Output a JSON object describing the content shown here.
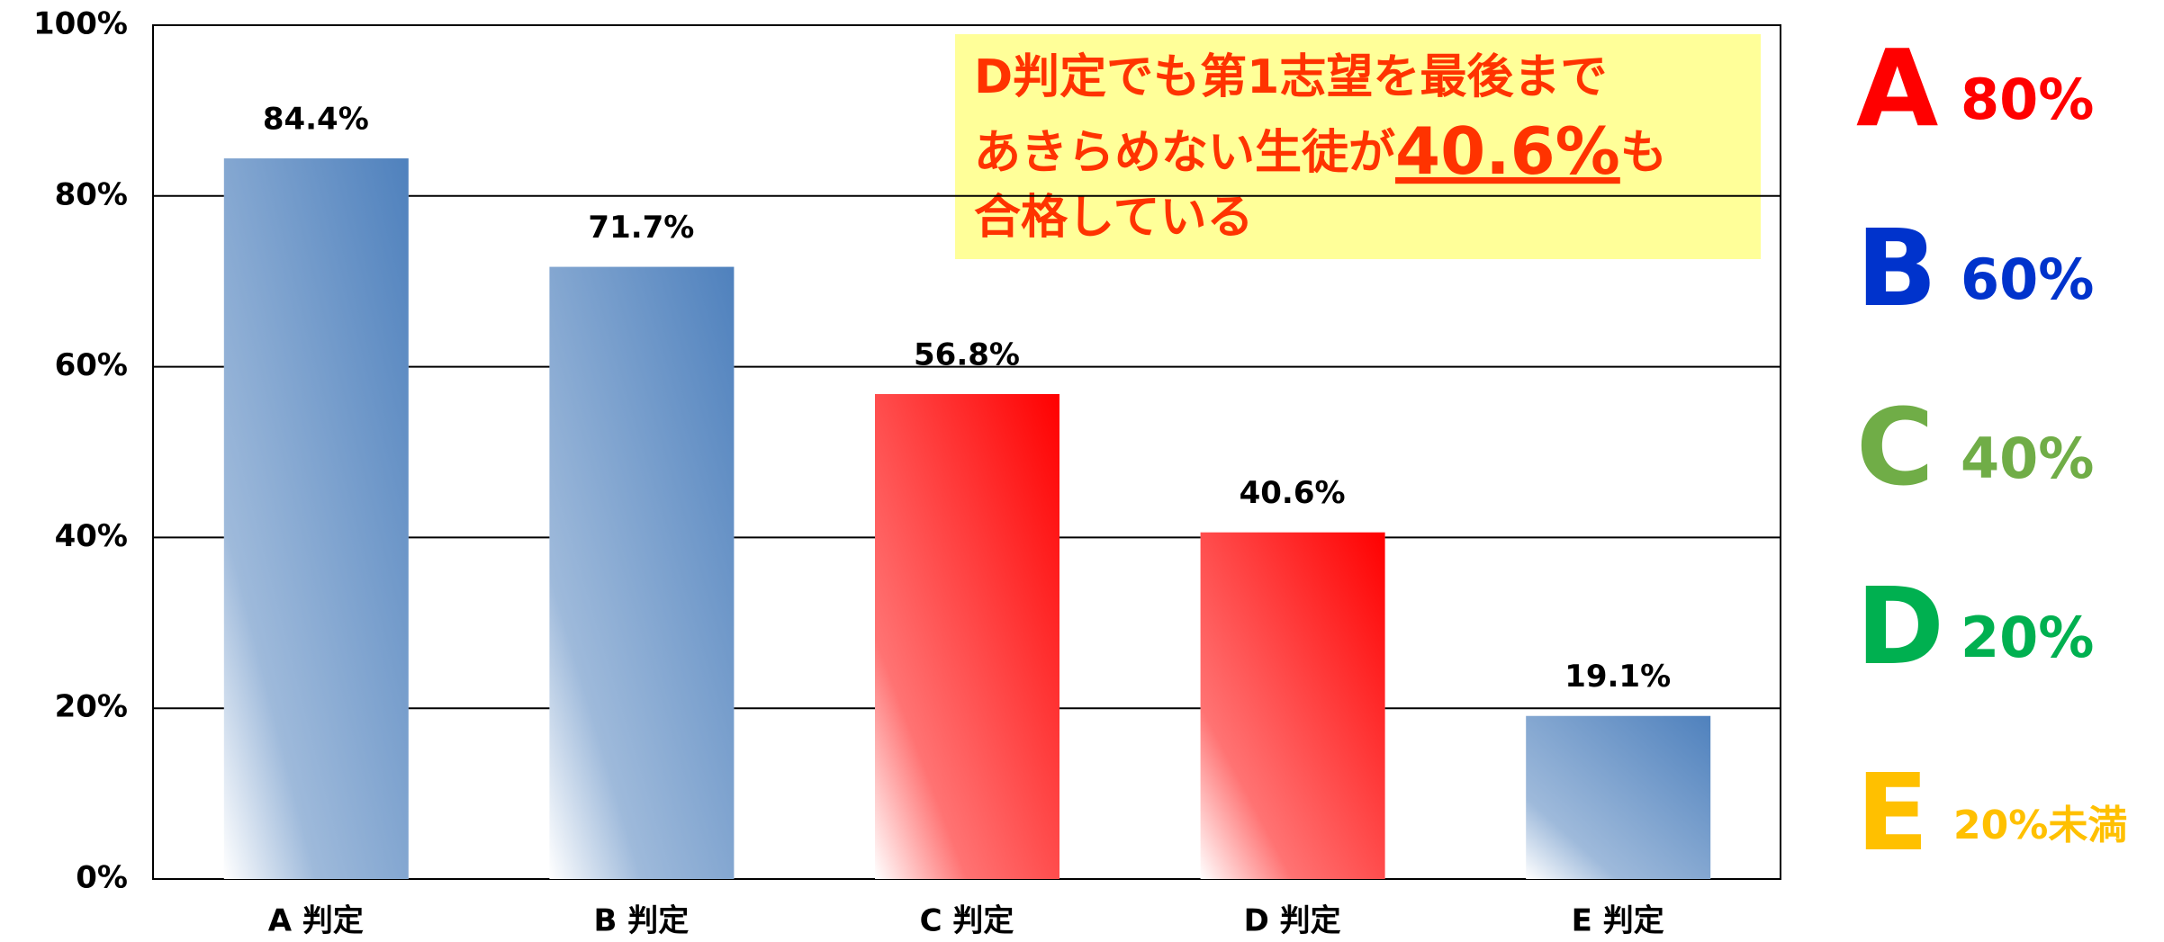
{
  "chart_data": {
    "type": "bar",
    "categories": [
      "A 判定",
      "B 判定",
      "C 判定",
      "D 判定",
      "E 判定"
    ],
    "values": [
      84.4,
      71.7,
      56.8,
      40.6,
      19.1
    ],
    "value_labels": [
      "84.4%",
      "71.7%",
      "56.8%",
      "40.6%",
      "19.1%"
    ],
    "colors": [
      "#4f81bd",
      "#4f81bd",
      "#ff0000",
      "#ff0000",
      "#4f81bd"
    ],
    "ylim": [
      0,
      100
    ],
    "yticks": [
      {
        "value": 0,
        "label": "0%"
      },
      {
        "value": 20,
        "label": "20%"
      },
      {
        "value": 40,
        "label": "40%"
      },
      {
        "value": 60,
        "label": "60%"
      },
      {
        "value": 80,
        "label": "80%"
      },
      {
        "value": 100,
        "label": "100%"
      }
    ],
    "grid": true,
    "annotation": [
      "D判定でも第1志望を最後まで",
      "あきらめない生徒が",
      "40.6%",
      "も",
      "合格している"
    ],
    "legend": [
      {
        "grade": "A",
        "label": "80%",
        "color": "#ff0000"
      },
      {
        "grade": "B",
        "label": "60%",
        "color": "#0033cc"
      },
      {
        "grade": "C",
        "label": "40%",
        "color": "#70ad47"
      },
      {
        "grade": "D",
        "label": "20%",
        "color": "#00b050"
      },
      {
        "grade": "E",
        "label": "20%未満",
        "color": "#ffc000"
      }
    ]
  }
}
